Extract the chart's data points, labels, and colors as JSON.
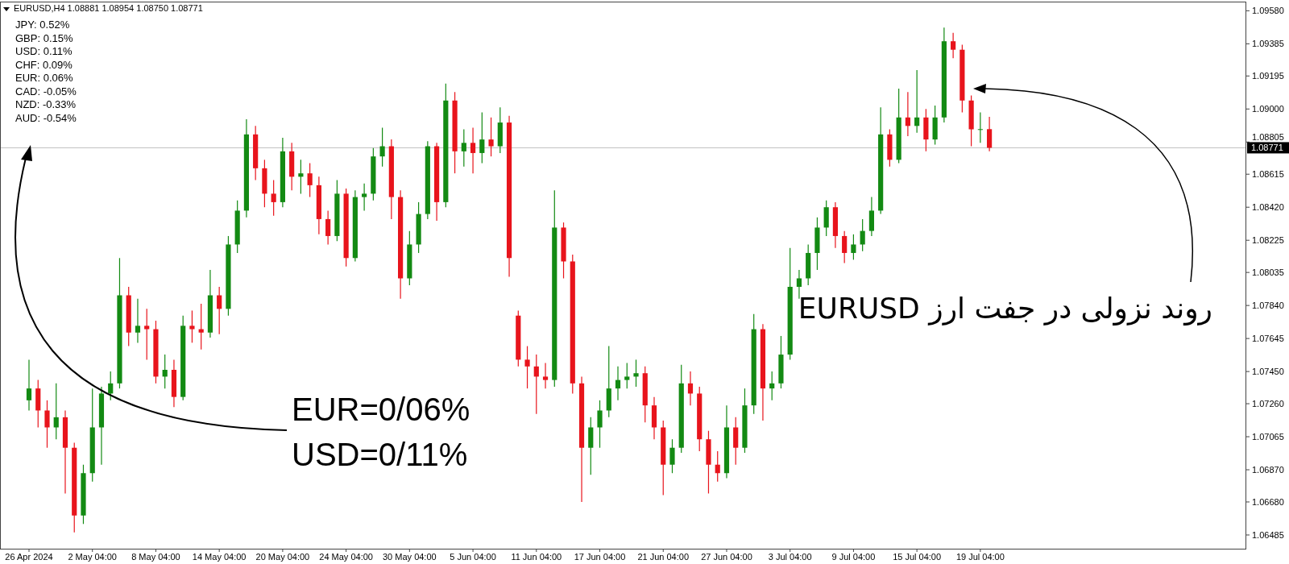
{
  "chart_data": {
    "type": "candlestick",
    "title": "EURUSD,H4  1.08881 1.08954 1.08750 1.08771",
    "categories": [
      "26 Apr 2024",
      null,
      null,
      null,
      null,
      null,
      null,
      "2 May 04:00",
      null,
      null,
      null,
      null,
      null,
      null,
      "8 May 04:00",
      null,
      null,
      null,
      null,
      null,
      null,
      "14 May 04:00",
      null,
      null,
      null,
      null,
      null,
      null,
      "20 May 04:00",
      null,
      null,
      null,
      null,
      null,
      null,
      "24 May 04:00",
      null,
      null,
      null,
      null,
      null,
      null,
      "30 May 04:00",
      null,
      null,
      null,
      null,
      null,
      null,
      "5 Jun 04:00",
      null,
      null,
      null,
      null,
      null,
      null,
      "11 Jun 04:00",
      null,
      null,
      null,
      null,
      null,
      null,
      "17 Jun 04:00",
      null,
      null,
      null,
      null,
      null,
      null,
      "21 Jun 04:00",
      null,
      null,
      null,
      null,
      null,
      null,
      "27 Jun 04:00",
      null,
      null,
      null,
      null,
      null,
      null,
      "3 Jul 04:00",
      null,
      null,
      null,
      null,
      null,
      null,
      "9 Jul 04:00",
      null,
      null,
      null,
      null,
      null,
      null,
      "15 Jul 04:00",
      null,
      null,
      null,
      null,
      null,
      null,
      "19 Jul 04:00",
      null,
      null,
      null,
      null,
      null,
      null,
      null,
      null,
      null,
      null,
      null,
      null,
      null,
      null,
      null,
      null,
      null,
      null,
      null,
      null,
      null,
      null,
      null,
      null,
      null,
      null,
      null,
      null
    ],
    "ohlc": [
      [
        1.0728,
        1.0752,
        1.0722,
        1.0735
      ],
      [
        1.0735,
        1.074,
        1.0712,
        1.0722
      ],
      [
        1.0722,
        1.0728,
        1.07,
        1.0712
      ],
      [
        1.0712,
        1.0738,
        1.0705,
        1.0718
      ],
      [
        1.0718,
        1.0722,
        1.0673,
        1.07
      ],
      [
        1.07,
        1.0703,
        1.065,
        1.066
      ],
      [
        1.066,
        1.069,
        1.0655,
        1.0685
      ],
      [
        1.0685,
        1.0735,
        1.068,
        1.0712
      ],
      [
        1.0712,
        1.0736,
        1.069,
        1.0732
      ],
      [
        1.0732,
        1.0745,
        1.0728,
        1.0738
      ],
      [
        1.0738,
        1.0812,
        1.0735,
        1.079
      ],
      [
        1.079,
        1.0795,
        1.076,
        1.0768
      ],
      [
        1.0768,
        1.0788,
        1.0762,
        1.0772
      ],
      [
        1.0772,
        1.0782,
        1.0752,
        1.077
      ],
      [
        1.077,
        1.0775,
        1.0738,
        1.0742
      ],
      [
        1.0742,
        1.0755,
        1.0735,
        1.0746
      ],
      [
        1.0746,
        1.0752,
        1.0724,
        1.073
      ],
      [
        1.073,
        1.0778,
        1.0728,
        1.0772
      ],
      [
        1.0772,
        1.0781,
        1.0762,
        1.077
      ],
      [
        1.077,
        1.0785,
        1.0758,
        1.0768
      ],
      [
        1.0768,
        1.0805,
        1.0765,
        1.079
      ],
      [
        1.079,
        1.0795,
        1.0767,
        1.0782
      ],
      [
        1.0782,
        1.0825,
        1.0778,
        1.082
      ],
      [
        1.082,
        1.0846,
        1.0815,
        1.084
      ],
      [
        1.084,
        1.0894,
        1.0836,
        1.0885
      ],
      [
        1.0885,
        1.089,
        1.0858,
        1.0865
      ],
      [
        1.0865,
        1.087,
        1.0842,
        1.085
      ],
      [
        1.085,
        1.0858,
        1.0837,
        1.0845
      ],
      [
        1.0845,
        1.0883,
        1.0842,
        1.0875
      ],
      [
        1.0875,
        1.088,
        1.0852,
        1.086
      ],
      [
        1.086,
        1.087,
        1.085,
        1.0862
      ],
      [
        1.0862,
        1.0868,
        1.0848,
        1.0855
      ],
      [
        1.0855,
        1.086,
        1.0826,
        1.0835
      ],
      [
        1.0835,
        1.084,
        1.082,
        1.0825
      ],
      [
        1.0825,
        1.0858,
        1.0822,
        1.085
      ],
      [
        1.085,
        1.0853,
        1.0807,
        1.0812
      ],
      [
        1.0812,
        1.0852,
        1.081,
        1.0848
      ],
      [
        1.0848,
        1.0856,
        1.084,
        1.085
      ],
      [
        1.085,
        1.0877,
        1.0846,
        1.0872
      ],
      [
        1.0872,
        1.0889,
        1.0866,
        1.0878
      ],
      [
        1.0878,
        1.0882,
        1.0835,
        1.0848
      ],
      [
        1.0848,
        1.0852,
        1.0788,
        1.08
      ],
      [
        1.08,
        1.0828,
        1.0796,
        1.082
      ],
      [
        1.082,
        1.0845,
        1.0815,
        1.0838
      ],
      [
        1.0838,
        1.0881,
        1.0835,
        1.0878
      ],
      [
        1.0878,
        1.088,
        1.0834,
        1.0845
      ],
      [
        1.0845,
        1.0915,
        1.0842,
        1.0905
      ],
      [
        1.0905,
        1.091,
        1.0862,
        1.0875
      ],
      [
        1.0875,
        1.0888,
        1.0866,
        1.088
      ],
      [
        1.088,
        1.0889,
        1.0862,
        1.0874
      ],
      [
        1.0874,
        1.0898,
        1.0868,
        1.0882
      ],
      [
        1.0882,
        1.0895,
        1.0872,
        1.0878
      ],
      [
        1.0878,
        1.0901,
        1.0874,
        1.0892
      ],
      [
        1.0892,
        1.0896,
        1.0801,
        1.0812
      ],
      [
        1.0778,
        1.0781,
        1.0748,
        1.0752
      ],
      [
        1.0752,
        1.076,
        1.0735,
        1.0748
      ],
      [
        1.0748,
        1.0755,
        1.072,
        1.0742
      ],
      [
        1.0742,
        1.075,
        1.0735,
        1.074
      ],
      [
        1.074,
        1.0852,
        1.0736,
        1.083
      ],
      [
        1.083,
        1.0833,
        1.08,
        1.081
      ],
      [
        1.081,
        1.0814,
        1.0732,
        1.0738
      ],
      [
        1.0738,
        1.0742,
        1.0668,
        1.07
      ],
      [
        1.07,
        1.0718,
        1.0684,
        1.0712
      ],
      [
        1.0712,
        1.0728,
        1.07,
        1.0722
      ],
      [
        1.0722,
        1.076,
        1.0718,
        1.0735
      ],
      [
        1.0735,
        1.0748,
        1.0728,
        1.074
      ],
      [
        1.074,
        1.075,
        1.0735,
        1.0742
      ],
      [
        1.0742,
        1.0752,
        1.0736,
        1.0744
      ],
      [
        1.0744,
        1.0748,
        1.0715,
        1.0725
      ],
      [
        1.0725,
        1.073,
        1.0705,
        1.0712
      ],
      [
        1.0712,
        1.0716,
        1.0672,
        1.069
      ],
      [
        1.069,
        1.0705,
        1.0685,
        1.07
      ],
      [
        1.07,
        1.0749,
        1.0697,
        1.0738
      ],
      [
        1.0738,
        1.0745,
        1.0725,
        1.0732
      ],
      [
        1.0732,
        1.0736,
        1.0698,
        1.0705
      ],
      [
        1.0705,
        1.071,
        1.0673,
        1.069
      ],
      [
        1.069,
        1.0698,
        1.068,
        1.0685
      ],
      [
        1.0685,
        1.0725,
        1.0682,
        1.0712
      ],
      [
        1.0712,
        1.0718,
        1.069,
        1.07
      ],
      [
        1.07,
        1.0735,
        1.0697,
        1.0725
      ],
      [
        1.0725,
        1.0779,
        1.072,
        1.077
      ],
      [
        1.077,
        1.0773,
        1.0716,
        1.0735
      ],
      [
        1.0735,
        1.0745,
        1.0728,
        1.0738
      ],
      [
        1.0738,
        1.0766,
        1.0735,
        1.0755
      ],
      [
        1.0755,
        1.0818,
        1.0752,
        1.0795
      ],
      [
        1.0795,
        1.0805,
        1.0788,
        1.08
      ],
      [
        1.08,
        1.082,
        1.0796,
        1.0815
      ],
      [
        1.0815,
        1.0836,
        1.0805,
        1.083
      ],
      [
        1.083,
        1.0846,
        1.0825,
        1.0842
      ],
      [
        1.0842,
        1.0845,
        1.0818,
        1.0825
      ],
      [
        1.0825,
        1.0828,
        1.0809,
        1.0815
      ],
      [
        1.0815,
        1.0826,
        1.0811,
        1.082
      ],
      [
        1.082,
        1.0835,
        1.0816,
        1.0828
      ],
      [
        1.0828,
        1.0848,
        1.0825,
        1.084
      ],
      [
        1.084,
        1.0901,
        1.0838,
        1.0885
      ],
      [
        1.0885,
        1.0888,
        1.0866,
        1.087
      ],
      [
        1.087,
        1.0912,
        1.0868,
        1.0895
      ],
      [
        1.0895,
        1.091,
        1.0884,
        1.089
      ],
      [
        1.089,
        1.0923,
        1.0886,
        1.0895
      ],
      [
        1.0895,
        1.09,
        1.0875,
        1.0882
      ],
      [
        1.0882,
        1.0902,
        1.0879,
        1.0895
      ],
      [
        1.0895,
        1.0948,
        1.0892,
        1.094
      ],
      [
        1.094,
        1.0945,
        1.093,
        1.0935
      ],
      [
        1.0935,
        1.0938,
        1.0898,
        1.0905
      ],
      [
        1.0905,
        1.0908,
        1.0878,
        1.0888
      ],
      [
        1.0888,
        1.0898,
        1.088,
        1.08881
      ],
      [
        1.08881,
        1.08954,
        1.0875,
        1.08771
      ],
      null,
      null,
      null,
      null,
      null,
      null,
      null,
      null,
      null,
      null,
      null,
      null,
      null,
      null,
      null,
      null,
      null,
      null,
      null,
      null,
      null,
      null,
      null,
      null,
      null,
      null,
      null
    ],
    "ylim": [
      1.06404,
      1.09634
    ],
    "yticks": [
      {
        "value": 1.0958,
        "label": "1.09580"
      },
      {
        "value": 1.09385,
        "label": "1.09385"
      },
      {
        "value": 1.09195,
        "label": "1.09195"
      },
      {
        "value": 1.09,
        "label": "1.09000"
      },
      {
        "value": 1.08805,
        "label": "1.08805"
      },
      {
        "value": 1.08615,
        "label": "1.08615"
      },
      {
        "value": 1.0842,
        "label": "1.08420"
      },
      {
        "value": 1.08225,
        "label": "1.08225"
      },
      {
        "value": 1.08035,
        "label": "1.08035"
      },
      {
        "value": 1.0784,
        "label": "1.07840"
      },
      {
        "value": 1.07645,
        "label": "1.07645"
      },
      {
        "value": 1.0745,
        "label": "1.07450"
      },
      {
        "value": 1.0726,
        "label": "1.07260"
      },
      {
        "value": 1.07065,
        "label": "1.07065"
      },
      {
        "value": 1.0687,
        "label": "1.06870"
      },
      {
        "value": 1.0668,
        "label": "1.06680"
      },
      {
        "value": 1.06485,
        "label": "1.06485"
      }
    ],
    "ref_lines": [
      {
        "axis": "y",
        "value": 1.08771,
        "label": "1.08771",
        "color": "#c0c0c0"
      }
    ],
    "annotations": [
      "JPY: 0.52%",
      "GBP: 0.15%",
      "USD: 0.11%",
      "CHF: 0.09%",
      "EUR: 0.06%",
      "CAD: -0.05%",
      "NZD: -0.33%",
      "AUD: -0.54%",
      "EUR=0/06%",
      "USD=0/11%",
      "روند نزولی در جفت ارز EURUSD"
    ],
    "grid": false
  }
}
